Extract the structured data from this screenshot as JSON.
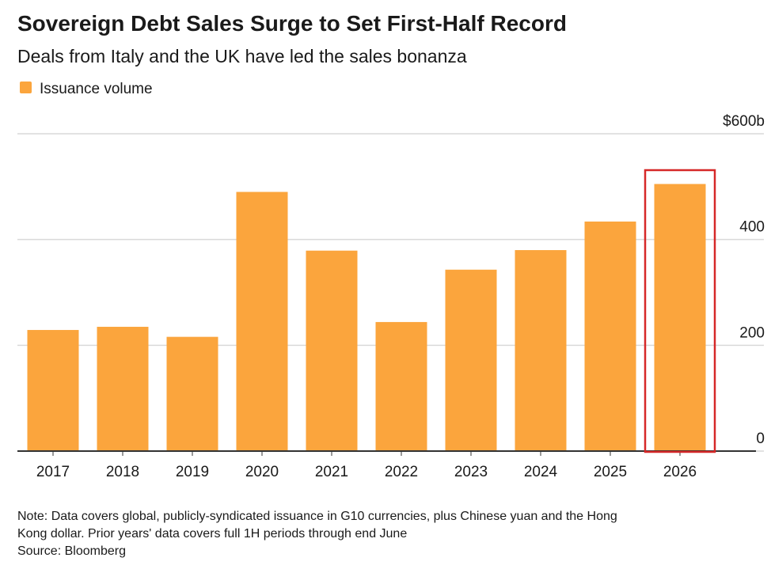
{
  "chart_data": {
    "type": "bar",
    "title": "Sovereign Debt Sales Surge to Set First-Half Record",
    "subtitle": "Deals from Italy and the UK have led the sales bonanza",
    "legend": "Issuance volume",
    "categories": [
      "2017",
      "2018",
      "2019",
      "2020",
      "2021",
      "2022",
      "2023",
      "2024",
      "2025",
      "2026"
    ],
    "values": [
      229,
      235,
      216,
      490,
      379,
      244,
      343,
      380,
      434,
      505
    ],
    "color": "#fba53d",
    "ylim": [
      0,
      600
    ],
    "yticks": [
      0,
      200,
      400,
      {
        "value": 600,
        "label": "$600b"
      }
    ],
    "grid": true,
    "highlight_index": 9,
    "highlight_color": "#d62828",
    "note": [
      "Note: Data covers global, publicly-syndicated issuance in G10 currencies, plus Chinese yuan and the Hong",
      "Kong dollar. Prior years' data covers full 1H periods through end June"
    ],
    "source": "Source: Bloomberg"
  }
}
